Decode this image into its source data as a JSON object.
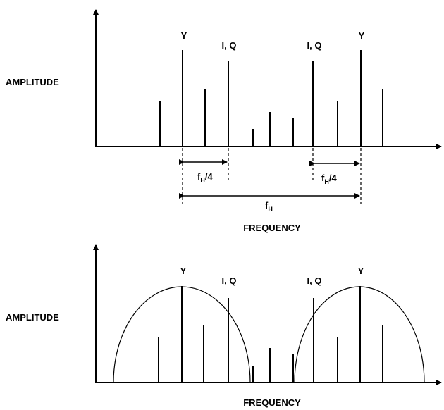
{
  "top_panel": {
    "axis_label": "AMPLITUDE",
    "x_label": "FREQUENCY",
    "peak_labels": [
      "Y",
      "I, Q",
      "I, Q",
      "Y"
    ],
    "dim_short_left": {
      "main": "f",
      "sub": "H",
      "tail": "/4"
    },
    "dim_short_right": {
      "main": "f",
      "sub": "H",
      "tail": "/4"
    },
    "dim_long": {
      "main": "f",
      "sub": "H"
    }
  },
  "bottom_panel": {
    "axis_label": "AMPLITUDE",
    "x_label": "FREQUENCY",
    "peak_labels": [
      "Y",
      "I, Q",
      "I, Q",
      "Y"
    ]
  },
  "colors": {
    "line": "#000000",
    "background": "#ffffff"
  }
}
